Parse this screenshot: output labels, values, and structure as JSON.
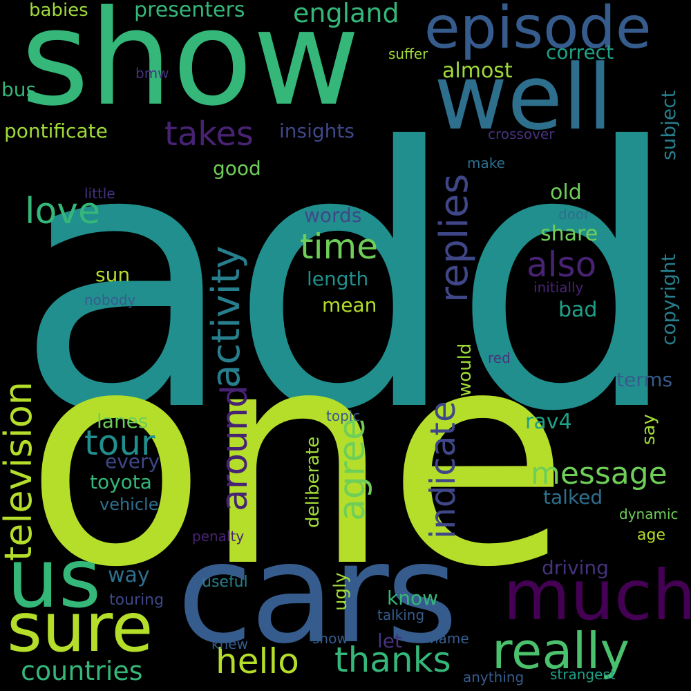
{
  "colors": {
    "background": "#000000",
    "yellow_green": "#b5de2b",
    "lime": "#a0da39",
    "green": "#6ece58",
    "mint": "#4ac16d",
    "emerald": "#35b779",
    "teal_green": "#1fa187",
    "teal": "#218f8d",
    "cyan_teal": "#277f8e",
    "steel_blue": "#2e6f8e",
    "blue": "#365c8d",
    "slate_blue": "#3f4788",
    "indigo": "#46327e",
    "purple": "#482374",
    "deep_purple": "#440154"
  },
  "words": {
    "add": "add",
    "one": "one",
    "show": "show",
    "cars": "cars",
    "episode": "episode",
    "well": "well",
    "us": "us",
    "sure": "sure",
    "much": "much",
    "really": "really",
    "television": "television",
    "activity": "activity",
    "replies": "replies",
    "indicate": "indicate",
    "around": "around",
    "agree": "agree",
    "message": "message",
    "tour": "tour",
    "time": "time",
    "also": "also",
    "love": "love",
    "takes": "takes",
    "thanks": "thanks",
    "hello": "hello",
    "countries": "countries",
    "babies": "babies",
    "presenters": "presenters",
    "england": "england",
    "correct": "correct",
    "almost": "almost",
    "insights": "insights",
    "pontificate": "pontificate",
    "bus": "bus",
    "bmw": "bmw",
    "suffer": "suffer",
    "subject": "subject",
    "crossover": "crossover",
    "good": "good",
    "make": "make",
    "little": "little",
    "old": "old",
    "door": "door",
    "words": "words",
    "share": "share",
    "copyright": "copyright",
    "length": "length",
    "sun": "sun",
    "nobody": "nobody",
    "initially": "initially",
    "mean": "mean",
    "bad": "bad",
    "would": "would",
    "red": "red",
    "terms": "terms",
    "deliberate": "deliberate",
    "topic": "topic",
    "lanes": "lanes",
    "rav4": "rav4",
    "say": "say",
    "every": "every",
    "toyota": "toyota",
    "vehicle": "vehicle",
    "talked": "talked",
    "dynamic": "dynamic",
    "penalty": "penalty",
    "age": "age",
    "way": "way",
    "driving": "driving",
    "useful": "useful",
    "touring": "touring",
    "ugly": "ugly",
    "know": "know",
    "talking": "talking",
    "let": "let",
    "knew": "knew",
    "snow": "snow",
    "name": "name",
    "anything": "anything",
    "strangest": "strangest"
  }
}
